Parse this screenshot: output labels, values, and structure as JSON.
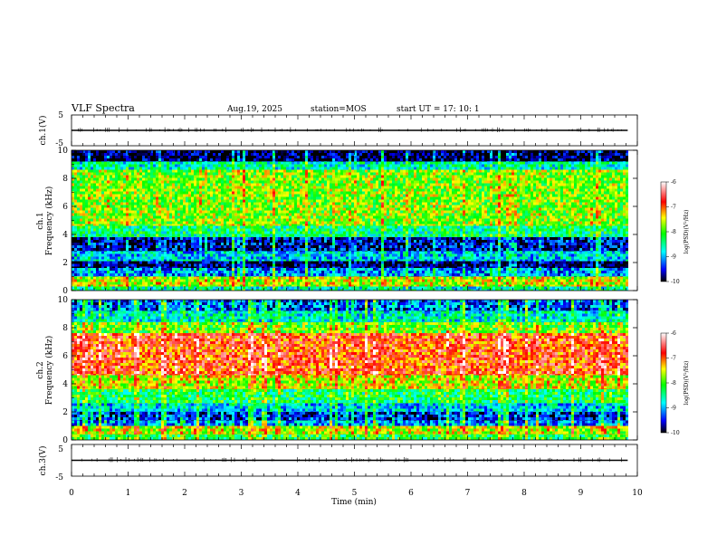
{
  "header": {
    "title": "VLF Spectra",
    "date": "Aug.19, 2025",
    "station": "station=MOS",
    "start": "start UT =   17: 10: 1"
  },
  "chart_data": [
    {
      "type": "line",
      "panel": "ch1-waveform",
      "ylabel": "ch.1(V)",
      "ylim": [
        -5,
        5
      ],
      "yticks": [
        "5",
        "-5"
      ],
      "x": [
        0,
        9.83
      ],
      "y": [
        0,
        0
      ]
    },
    {
      "type": "heatmap",
      "panel": "ch1-spectrogram",
      "ylabel": "ch.1\nFrequency (kHz)",
      "ylim": [
        0,
        10
      ],
      "yticks": [
        "0",
        "2",
        "4",
        "6",
        "8",
        "10"
      ],
      "colorbar": {
        "label": "log(PSD)(V²/Hz)",
        "ticks": [
          "-6",
          "-7",
          "-8",
          "-9",
          "-10"
        ],
        "range": [
          -10,
          -6
        ]
      },
      "bands": [
        {
          "f": [
            0,
            0.3
          ],
          "level": -8.6
        },
        {
          "f": [
            0.3,
            1.0
          ],
          "level": -7.6
        },
        {
          "f": [
            1.0,
            1.6
          ],
          "level": -9.1
        },
        {
          "f": [
            1.6,
            2.1
          ],
          "level": -9.9
        },
        {
          "f": [
            2.1,
            2.8
          ],
          "level": -8.9
        },
        {
          "f": [
            2.8,
            3.8
          ],
          "level": -9.6
        },
        {
          "f": [
            3.8,
            4.6
          ],
          "level": -8.4
        },
        {
          "f": [
            4.6,
            8.6
          ],
          "level": -7.8
        },
        {
          "f": [
            8.6,
            9.2
          ],
          "level": -8.6
        },
        {
          "f": [
            9.2,
            10
          ],
          "level": -9.9
        }
      ]
    },
    {
      "type": "heatmap",
      "panel": "ch2-spectrogram",
      "ylabel": "ch.2\nFrequency (kHz)",
      "ylim": [
        0,
        10
      ],
      "yticks": [
        "0",
        "2",
        "4",
        "6",
        "8",
        "10"
      ],
      "colorbar": {
        "label": "log(PSD)(V²/Hz)",
        "ticks": [
          "-6",
          "-7",
          "-8",
          "-9",
          "-10"
        ],
        "range": [
          -10,
          -6
        ]
      },
      "bands": [
        {
          "f": [
            0,
            0.4
          ],
          "level": -8.2
        },
        {
          "f": [
            0.4,
            1.0
          ],
          "level": -7.6
        },
        {
          "f": [
            1.0,
            1.4
          ],
          "level": -9.1
        },
        {
          "f": [
            1.4,
            2.0
          ],
          "level": -9.5
        },
        {
          "f": [
            2.0,
            2.6
          ],
          "level": -8.9
        },
        {
          "f": [
            2.6,
            3.6
          ],
          "level": -8.3
        },
        {
          "f": [
            3.6,
            4.6
          ],
          "level": -7.6
        },
        {
          "f": [
            4.6,
            7.6
          ],
          "level": -6.9
        },
        {
          "f": [
            7.6,
            8.4
          ],
          "level": -7.9
        },
        {
          "f": [
            8.4,
            9.2
          ],
          "level": -8.7
        },
        {
          "f": [
            9.2,
            10
          ],
          "level": -9.3
        }
      ]
    },
    {
      "type": "line",
      "panel": "ch3-waveform",
      "ylabel": "ch.3(V)",
      "ylim": [
        -5,
        5
      ],
      "yticks": [
        "5",
        "-5"
      ],
      "x": [
        0,
        9.83
      ],
      "y": [
        0,
        0
      ]
    }
  ],
  "xaxis": {
    "label": "Time (min)",
    "ticks": [
      "0",
      "1",
      "2",
      "3",
      "4",
      "5",
      "6",
      "7",
      "8",
      "9",
      "10"
    ],
    "range": [
      0,
      10
    ],
    "data_end": 9.83
  }
}
